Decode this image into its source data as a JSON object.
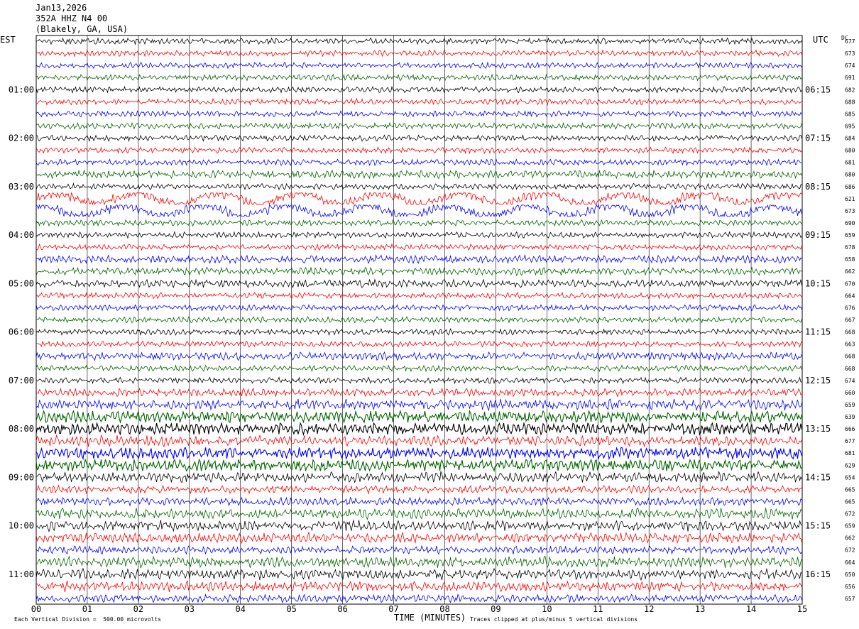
{
  "header": {
    "date": "Jan13,2026",
    "station": "352A HHZ N4 00",
    "location": "(Blakely, GA, USA)"
  },
  "left_axis_title": "EST",
  "right_axis_title": "UTC",
  "dc_title": "DC",
  "footer": {
    "vertical_division": "Each Vertical Division =  500.00 microvolts",
    "x_title": "TIME (MINUTES)",
    "clip_note": "Traces clipped at plus/minus 5 vertical divisions"
  },
  "chart_data": {
    "type": "line",
    "title": "352A HHZ N4 00",
    "xlabel": "TIME (MINUTES)",
    "x_range": [
      0,
      15
    ],
    "x_ticks": [
      "00",
      "01",
      "02",
      "03",
      "04",
      "05",
      "06",
      "07",
      "08",
      "09",
      "10",
      "11",
      "12",
      "13",
      "14",
      "15"
    ],
    "trace_colors": [
      "#000000",
      "#ff0000",
      "#0000ff",
      "#006400"
    ],
    "left_time_labels": [
      "01:00",
      "02:00",
      "03:00",
      "04:00",
      "05:00",
      "06:00",
      "07:00",
      "08:00",
      "09:00",
      "10:00",
      "11:00"
    ],
    "right_time_labels": [
      "06:15",
      "07:15",
      "08:15",
      "09:15",
      "10:15",
      "11:15",
      "12:15",
      "13:15",
      "14:15",
      "15:15",
      "16:15"
    ],
    "dc_offsets": [
      677,
      673,
      674,
      691,
      682,
      688,
      685,
      695,
      684,
      680,
      681,
      680,
      686,
      621,
      673,
      690,
      659,
      678,
      658,
      662,
      670,
      664,
      676,
      667,
      668,
      663,
      668,
      668,
      674,
      660,
      659,
      639,
      666,
      677,
      681,
      629,
      654,
      665,
      665,
      672,
      659,
      662,
      672,
      664,
      650,
      656,
      657
    ],
    "trace_activity": [
      2,
      2,
      2,
      2,
      2,
      2,
      2,
      2,
      2,
      2,
      2,
      3,
      2,
      4,
      4,
      2,
      2,
      2,
      3,
      3,
      3,
      2,
      2,
      2,
      2,
      2,
      3,
      2,
      2,
      3,
      4,
      5,
      5,
      4,
      5,
      5,
      4,
      3,
      3,
      4,
      4,
      4,
      3,
      4,
      4,
      4,
      3
    ],
    "clip_divisions": 5,
    "microvolts_per_division": 500
  }
}
